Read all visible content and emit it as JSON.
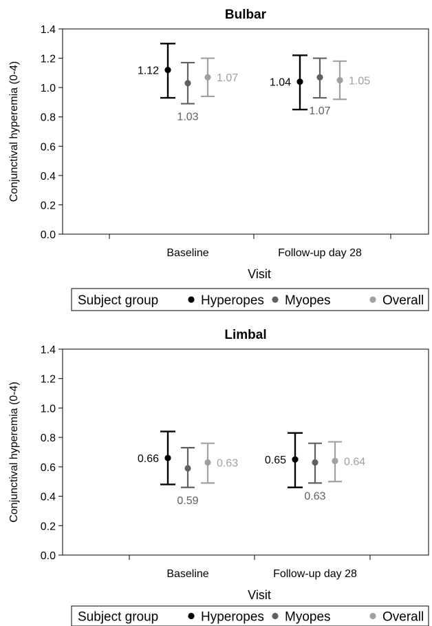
{
  "chart_data": [
    {
      "type": "scatter",
      "title": "Bulbar",
      "xlabel": "Visit",
      "ylabel": "Conjunctival hyperemia (0-4)",
      "categories": [
        "Baseline",
        "Follow-up  day 28"
      ],
      "ylim": [
        0.0,
        1.4
      ],
      "yticks": [
        "0.0",
        "0.2",
        "0.4",
        "0.6",
        "0.8",
        "1.0",
        "1.2",
        "1.4"
      ],
      "grid": false,
      "legend": {
        "title": "Subject  group",
        "position": "bottom"
      },
      "series": [
        {
          "name": "Hyperopes",
          "color": "#000000",
          "values": [
            1.12,
            1.04
          ],
          "labels": [
            "1.12",
            "1.04"
          ],
          "lower": [
            0.93,
            0.85
          ],
          "upper": [
            1.3,
            1.22
          ]
        },
        {
          "name": "Myopes",
          "color": "#606060",
          "values": [
            1.03,
            1.07
          ],
          "labels": [
            "1.03",
            "1.07"
          ],
          "lower": [
            0.89,
            0.93
          ],
          "upper": [
            1.17,
            1.2
          ]
        },
        {
          "name": "Overall",
          "color": "#a0a0a0",
          "values": [
            1.07,
            1.05
          ],
          "labels": [
            "1.07",
            "1.05"
          ],
          "lower": [
            0.94,
            0.92
          ],
          "upper": [
            1.2,
            1.18
          ]
        }
      ]
    },
    {
      "type": "scatter",
      "title": "Limbal",
      "xlabel": "Visit",
      "ylabel": "Conjunctival hyperemia (0-4)",
      "categories": [
        "Baseline",
        "Follow-up  day 28"
      ],
      "ylim": [
        0.0,
        1.4
      ],
      "yticks": [
        "0.0",
        "0.2",
        "0.4",
        "0.6",
        "0.8",
        "1.0",
        "1.2",
        "1.4"
      ],
      "grid": false,
      "legend": {
        "title": "Subject  group",
        "position": "bottom"
      },
      "series": [
        {
          "name": "Hyperopes",
          "color": "#000000",
          "values": [
            0.66,
            0.65
          ],
          "labels": [
            "0.66",
            "0.65"
          ],
          "lower": [
            0.48,
            0.46
          ],
          "upper": [
            0.84,
            0.83
          ]
        },
        {
          "name": "Myopes",
          "color": "#606060",
          "values": [
            0.59,
            0.63
          ],
          "labels": [
            "0.59",
            "0.63"
          ],
          "lower": [
            0.46,
            0.49
          ],
          "upper": [
            0.73,
            0.76
          ]
        },
        {
          "name": "Overall",
          "color": "#a0a0a0",
          "values": [
            0.63,
            0.64
          ],
          "labels": [
            "0.63",
            "0.64"
          ],
          "lower": [
            0.49,
            0.5
          ],
          "upper": [
            0.76,
            0.77
          ]
        }
      ]
    }
  ]
}
